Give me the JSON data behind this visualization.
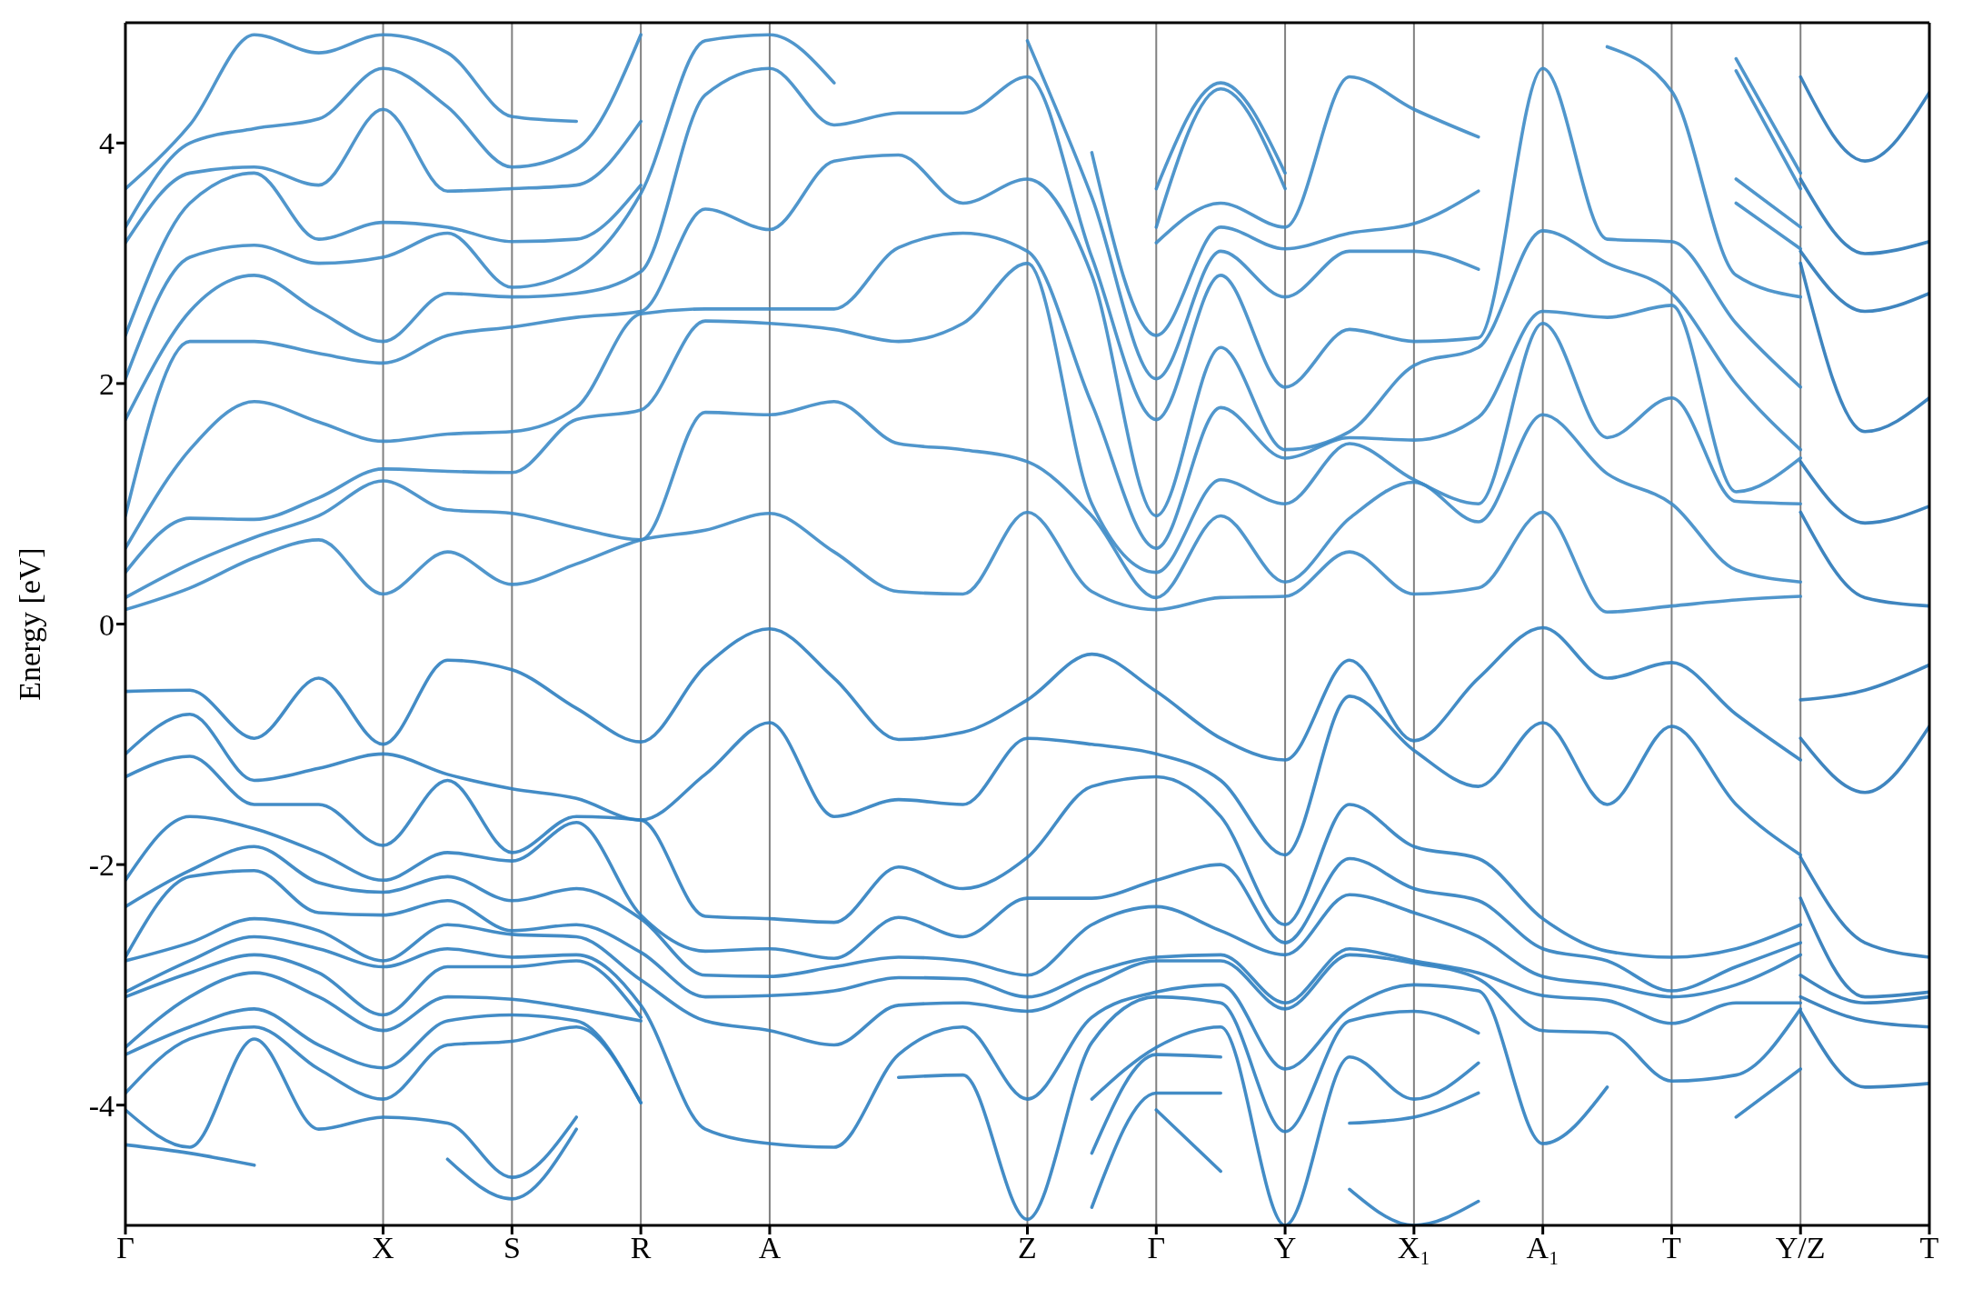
{
  "chart_data": {
    "type": "line",
    "ylabel": "Energy [eV]",
    "grid": "x",
    "line_style": "solid",
    "categories": [
      "Γ",
      null,
      null,
      null,
      "X",
      null,
      "S",
      null,
      "R",
      null,
      "A",
      null,
      null,
      null,
      "Z",
      null,
      "Γ",
      null,
      "Y",
      null,
      "X₁",
      null,
      "A₁",
      null,
      "T",
      null,
      "Y/Z",
      null,
      "T"
    ],
    "ylim": [
      -5,
      5
    ],
    "yticks": [
      -4,
      -2,
      0,
      2,
      4
    ],
    "series": [
      {
        "color": "#3d8bc6",
        "values": [
          0.12,
          0.3,
          0.55,
          0.7,
          0.25,
          0.6,
          0.33,
          0.5,
          0.7,
          0.78,
          0.92,
          0.6,
          0.27,
          0.25,
          0.93,
          0.27,
          0.12,
          0.22,
          0.23,
          0.6,
          0.25,
          0.3,
          0.93,
          0.1,
          0.15,
          0.2,
          0.23,
          null,
          null
        ]
      },
      {
        "color": "#3d8bc6",
        "values": [
          0.22,
          0.5,
          0.72,
          0.9,
          1.19,
          0.95,
          0.92,
          0.8,
          0.7,
          1.76,
          1.74,
          1.85,
          1.5,
          1.45,
          1.35,
          0.9,
          0.22,
          0.9,
          0.35,
          0.88,
          1.18,
          0.85,
          1.74,
          1.25,
          1.0,
          0.45,
          0.35,
          null,
          null
        ]
      },
      {
        "color": "#3d8bc6",
        "values": [
          0.43,
          0.88,
          0.87,
          1.05,
          1.29,
          1.27,
          1.26,
          1.7,
          1.78,
          2.52,
          2.5,
          2.45,
          2.35,
          2.5,
          3.0,
          1.0,
          0.43,
          1.2,
          1.0,
          1.5,
          1.2,
          1.0,
          2.5,
          1.55,
          1.88,
          1.02,
          1.0,
          null,
          null
        ]
      },
      {
        "color": "#3d8bc6",
        "values": [
          0.63,
          1.45,
          1.85,
          1.68,
          1.52,
          1.58,
          1.6,
          1.8,
          2.58,
          2.62,
          2.62,
          2.62,
          3.13,
          3.25,
          3.1,
          1.83,
          0.63,
          1.8,
          1.38,
          1.55,
          1.53,
          1.72,
          2.6,
          2.55,
          2.65,
          1.1,
          1.38,
          null,
          null
        ]
      },
      {
        "color": "#3d8bc6",
        "values": [
          0.9,
          2.35,
          2.35,
          2.25,
          2.17,
          2.4,
          2.47,
          2.55,
          2.6,
          3.45,
          3.28,
          3.85,
          3.9,
          3.5,
          3.7,
          2.9,
          0.9,
          2.3,
          1.45,
          1.6,
          2.15,
          2.3,
          3.27,
          3.0,
          2.75,
          2.0,
          1.45,
          null,
          null
        ]
      },
      {
        "color": "#3d8bc6",
        "values": [
          1.7,
          2.6,
          2.9,
          2.6,
          2.35,
          2.75,
          2.72,
          2.75,
          2.93,
          4.4,
          4.62,
          4.15,
          4.25,
          4.25,
          4.55,
          3.05,
          1.7,
          2.9,
          1.97,
          2.45,
          2.35,
          2.38,
          4.62,
          3.2,
          3.18,
          2.5,
          1.97,
          null,
          null
        ]
      },
      {
        "color": "#3d8bc6",
        "values": [
          2.04,
          3.05,
          3.15,
          3.0,
          3.05,
          3.25,
          2.8,
          2.95,
          3.58,
          4.85,
          4.9,
          4.5,
          null,
          null,
          4.85,
          3.55,
          2.04,
          3.1,
          2.72,
          3.1,
          3.1,
          2.95,
          null,
          4.8,
          4.43,
          2.9,
          2.72,
          null,
          null
        ]
      },
      {
        "color": "#3d8bc6",
        "values": [
          2.4,
          3.5,
          3.75,
          3.2,
          3.34,
          3.3,
          3.18,
          3.2,
          3.65,
          null,
          null,
          null,
          null,
          null,
          null,
          3.92,
          2.4,
          3.3,
          3.12,
          3.25,
          3.33,
          3.6,
          null,
          null,
          null,
          3.5,
          3.12,
          null,
          null
        ]
      },
      {
        "color": "#3d8bc6",
        "values": [
          3.17,
          3.75,
          3.8,
          3.65,
          4.28,
          3.6,
          3.62,
          3.65,
          4.18,
          null,
          null,
          null,
          null,
          null,
          null,
          null,
          3.17,
          3.5,
          3.3,
          4.55,
          4.28,
          4.05,
          null,
          null,
          null,
          3.7,
          3.3,
          null,
          null
        ]
      },
      {
        "color": "#3d8bc6",
        "values": [
          3.3,
          4.0,
          4.12,
          4.2,
          4.62,
          4.3,
          3.8,
          3.95,
          4.9,
          null,
          null,
          null,
          null,
          null,
          null,
          null,
          3.3,
          4.45,
          3.62,
          null,
          null,
          null,
          null,
          null,
          null,
          4.6,
          3.62,
          null,
          null
        ]
      },
      {
        "color": "#3d8bc6",
        "values": [
          3.62,
          4.15,
          4.9,
          4.75,
          4.9,
          4.75,
          4.22,
          4.18,
          null,
          null,
          null,
          null,
          null,
          null,
          null,
          null,
          3.62,
          4.5,
          3.75,
          null,
          null,
          null,
          null,
          null,
          null,
          4.7,
          3.75,
          null,
          null
        ]
      },
      {
        "color": "#2f80c0",
        "values": [
          -0.56,
          -0.55,
          -0.95,
          -0.45,
          -1.0,
          -0.3,
          -0.38,
          -0.7,
          -0.98,
          -0.35,
          -0.04,
          -0.45,
          -0.96,
          -0.9,
          -0.63,
          -0.25,
          -0.56,
          -0.95,
          -1.13,
          -0.3,
          -0.97,
          -0.45,
          -0.03,
          -0.45,
          -0.32,
          -0.75,
          -1.13,
          null,
          null
        ]
      },
      {
        "color": "#2f80c0",
        "values": [
          -1.08,
          -0.75,
          -1.3,
          -1.2,
          -1.08,
          -1.25,
          -1.37,
          -1.45,
          -1.63,
          -1.25,
          -0.82,
          -1.6,
          -1.46,
          -1.5,
          -0.95,
          -1.0,
          -1.08,
          -1.3,
          -1.92,
          -0.6,
          -1.05,
          -1.35,
          -0.82,
          -1.5,
          -0.85,
          -1.5,
          -1.92,
          null,
          null
        ]
      },
      {
        "color": "#2f80c0",
        "values": [
          -1.27,
          -1.1,
          -1.5,
          -1.5,
          -1.84,
          -1.3,
          -1.9,
          -1.6,
          -1.63,
          -2.43,
          -2.45,
          -2.48,
          -2.02,
          -2.2,
          -1.94,
          -1.35,
          -1.27,
          -1.6,
          -2.5,
          -1.5,
          -1.85,
          -1.95,
          -2.45,
          -2.72,
          -2.77,
          -2.7,
          -2.5,
          null,
          null
        ]
      },
      {
        "color": "#2f80c0",
        "values": [
          -2.13,
          -1.6,
          -1.7,
          -1.9,
          -2.13,
          -1.9,
          -1.97,
          -1.65,
          -2.42,
          -2.72,
          -2.7,
          -2.78,
          -2.44,
          -2.6,
          -2.28,
          -2.28,
          -2.13,
          -2.0,
          -2.65,
          -1.95,
          -2.2,
          -2.3,
          -2.7,
          -2.8,
          -3.05,
          -2.85,
          -2.65,
          null,
          null
        ]
      },
      {
        "color": "#2f80c0",
        "values": [
          -2.35,
          -2.05,
          -1.85,
          -2.15,
          -2.23,
          -2.1,
          -2.3,
          -2.2,
          -2.45,
          -2.92,
          -2.93,
          -2.85,
          -2.77,
          -2.8,
          -2.92,
          -2.5,
          -2.35,
          -2.55,
          -2.75,
          -2.25,
          -2.4,
          -2.6,
          -2.93,
          -3.0,
          -3.1,
          -3.0,
          -2.75,
          null,
          null
        ]
      },
      {
        "color": "#2f80c0",
        "values": [
          -2.77,
          -2.1,
          -2.05,
          -2.4,
          -2.42,
          -2.3,
          -2.55,
          -2.5,
          -2.73,
          -3.1,
          -3.09,
          -3.05,
          -2.94,
          -2.95,
          -3.1,
          -2.9,
          -2.77,
          -2.75,
          -3.15,
          -2.7,
          -2.8,
          -2.9,
          -3.09,
          -3.13,
          -3.32,
          -3.15,
          -3.15,
          null,
          null
        ]
      },
      {
        "color": "#2f80c0",
        "values": [
          -2.8,
          -2.65,
          -2.45,
          -2.55,
          -2.8,
          -2.5,
          -2.58,
          -2.6,
          -2.96,
          -3.3,
          -3.38,
          -3.5,
          -3.17,
          -3.15,
          -3.22,
          -3.0,
          -2.8,
          -2.8,
          -3.2,
          -2.75,
          -2.82,
          -2.95,
          -3.38,
          -3.4,
          -3.8,
          -3.75,
          -3.2,
          null,
          null
        ]
      },
      {
        "color": "#2f80c0",
        "values": [
          -3.06,
          -2.8,
          -2.6,
          -2.7,
          -2.85,
          -2.7,
          -2.77,
          -2.75,
          -3.17,
          -4.2,
          -4.32,
          -4.35,
          -3.58,
          -3.35,
          -3.95,
          -3.27,
          -3.06,
          -3.0,
          -3.7,
          -3.2,
          -3.0,
          -3.05,
          -4.32,
          -3.85,
          null,
          -4.1,
          -3.7,
          null,
          null
        ]
      },
      {
        "color": "#2f80c0",
        "values": [
          -3.1,
          -2.9,
          -2.75,
          -2.9,
          -3.25,
          -2.85,
          -2.85,
          -2.8,
          -3.27,
          null,
          null,
          null,
          -3.77,
          -3.75,
          -4.95,
          -3.48,
          -3.1,
          -3.15,
          -4.22,
          -3.3,
          -3.22,
          -3.4,
          null,
          null,
          null,
          null,
          null,
          null,
          null
        ]
      },
      {
        "color": "#2f80c0",
        "values": [
          -3.52,
          -3.1,
          -2.9,
          -3.1,
          -3.38,
          -3.1,
          -3.12,
          -3.2,
          -3.3,
          null,
          null,
          null,
          null,
          null,
          null,
          -3.95,
          -3.52,
          -3.35,
          -5.0,
          -3.6,
          -3.95,
          -3.65,
          null,
          null,
          null,
          null,
          null,
          null,
          null
        ]
      },
      {
        "color": "#2f80c0",
        "values": [
          -3.58,
          -3.35,
          -3.2,
          -3.5,
          -3.69,
          -3.3,
          -3.25,
          -3.3,
          -3.98,
          null,
          null,
          null,
          null,
          null,
          null,
          -4.4,
          -3.58,
          -3.6,
          null,
          -4.15,
          -4.1,
          -3.9,
          null,
          null,
          null,
          null,
          null,
          null,
          null
        ]
      },
      {
        "color": "#2f80c0",
        "values": [
          -3.9,
          -3.45,
          -3.35,
          -3.7,
          -3.95,
          -3.5,
          -3.47,
          -3.35,
          -3.98,
          null,
          null,
          null,
          null,
          null,
          null,
          -4.85,
          -3.9,
          -3.9,
          null,
          -4.7,
          -5.0,
          -4.8,
          null,
          null,
          null,
          null,
          null,
          null,
          null
        ]
      },
      {
        "color": "#2f80c0",
        "values": [
          -4.04,
          -4.35,
          -3.45,
          -4.2,
          -4.1,
          -4.15,
          -4.6,
          -4.1,
          null,
          null,
          null,
          null,
          null,
          null,
          null,
          null,
          -4.04,
          -4.55,
          null,
          null,
          null,
          null,
          null,
          null,
          null,
          null,
          null,
          null,
          null
        ]
      },
      {
        "color": "#2f80c0",
        "values": [
          -4.33,
          -4.4,
          -4.5,
          null,
          null,
          -4.45,
          -4.78,
          -4.2,
          null,
          null,
          null,
          null,
          null,
          null,
          null,
          null,
          null,
          null,
          null,
          null,
          null,
          null,
          null,
          null,
          null,
          null,
          null,
          null,
          null
        ]
      },
      {
        "color": "#2a78b8",
        "values": [
          null,
          null,
          null,
          null,
          null,
          null,
          null,
          null,
          null,
          null,
          null,
          null,
          null,
          null,
          null,
          null,
          null,
          null,
          null,
          null,
          null,
          null,
          null,
          null,
          null,
          null,
          0.93,
          0.22,
          0.15
        ]
      },
      {
        "color": "#2a78b8",
        "values": [
          null,
          null,
          null,
          null,
          null,
          null,
          null,
          null,
          null,
          null,
          null,
          null,
          null,
          null,
          null,
          null,
          null,
          null,
          null,
          null,
          null,
          null,
          null,
          null,
          null,
          null,
          1.35,
          0.84,
          0.98
        ]
      },
      {
        "color": "#2a78b8",
        "values": [
          null,
          null,
          null,
          null,
          null,
          null,
          null,
          null,
          null,
          null,
          null,
          null,
          null,
          null,
          null,
          null,
          null,
          null,
          null,
          null,
          null,
          null,
          null,
          null,
          null,
          null,
          3.0,
          1.6,
          1.88
        ]
      },
      {
        "color": "#2a78b8",
        "values": [
          null,
          null,
          null,
          null,
          null,
          null,
          null,
          null,
          null,
          null,
          null,
          null,
          null,
          null,
          null,
          null,
          null,
          null,
          null,
          null,
          null,
          null,
          null,
          null,
          null,
          null,
          3.1,
          2.6,
          2.75
        ]
      },
      {
        "color": "#2a78b8",
        "values": [
          null,
          null,
          null,
          null,
          null,
          null,
          null,
          null,
          null,
          null,
          null,
          null,
          null,
          null,
          null,
          null,
          null,
          null,
          null,
          null,
          null,
          null,
          null,
          null,
          null,
          null,
          3.7,
          3.08,
          3.18
        ]
      },
      {
        "color": "#2a78b8",
        "values": [
          null,
          null,
          null,
          null,
          null,
          null,
          null,
          null,
          null,
          null,
          null,
          null,
          null,
          null,
          null,
          null,
          null,
          null,
          null,
          null,
          null,
          null,
          null,
          null,
          null,
          null,
          4.55,
          3.85,
          4.42
        ]
      },
      {
        "color": "#2a78b8",
        "values": [
          null,
          null,
          null,
          null,
          null,
          null,
          null,
          null,
          null,
          null,
          null,
          null,
          null,
          null,
          null,
          null,
          null,
          null,
          null,
          null,
          null,
          null,
          null,
          null,
          null,
          null,
          -0.63,
          -0.55,
          -0.34
        ]
      },
      {
        "color": "#2a78b8",
        "values": [
          null,
          null,
          null,
          null,
          null,
          null,
          null,
          null,
          null,
          null,
          null,
          null,
          null,
          null,
          null,
          null,
          null,
          null,
          null,
          null,
          null,
          null,
          null,
          null,
          null,
          null,
          -0.95,
          -1.4,
          -0.85
        ]
      },
      {
        "color": "#2a78b8",
        "values": [
          null,
          null,
          null,
          null,
          null,
          null,
          null,
          null,
          null,
          null,
          null,
          null,
          null,
          null,
          null,
          null,
          null,
          null,
          null,
          null,
          null,
          null,
          null,
          null,
          null,
          null,
          -1.94,
          -2.65,
          -2.77
        ]
      },
      {
        "color": "#2a78b8",
        "values": [
          null,
          null,
          null,
          null,
          null,
          null,
          null,
          null,
          null,
          null,
          null,
          null,
          null,
          null,
          null,
          null,
          null,
          null,
          null,
          null,
          null,
          null,
          null,
          null,
          null,
          null,
          -2.28,
          -3.1,
          -3.06
        ]
      },
      {
        "color": "#2a78b8",
        "values": [
          null,
          null,
          null,
          null,
          null,
          null,
          null,
          null,
          null,
          null,
          null,
          null,
          null,
          null,
          null,
          null,
          null,
          null,
          null,
          null,
          null,
          null,
          null,
          null,
          null,
          null,
          -2.92,
          -3.15,
          -3.1
        ]
      },
      {
        "color": "#2a78b8",
        "values": [
          null,
          null,
          null,
          null,
          null,
          null,
          null,
          null,
          null,
          null,
          null,
          null,
          null,
          null,
          null,
          null,
          null,
          null,
          null,
          null,
          null,
          null,
          null,
          null,
          null,
          null,
          -3.1,
          -3.3,
          -3.35
        ]
      },
      {
        "color": "#2a78b8",
        "values": [
          null,
          null,
          null,
          null,
          null,
          null,
          null,
          null,
          null,
          null,
          null,
          null,
          null,
          null,
          null,
          null,
          null,
          null,
          null,
          null,
          null,
          null,
          null,
          null,
          null,
          null,
          -3.22,
          -3.85,
          -3.82
        ]
      }
    ]
  }
}
